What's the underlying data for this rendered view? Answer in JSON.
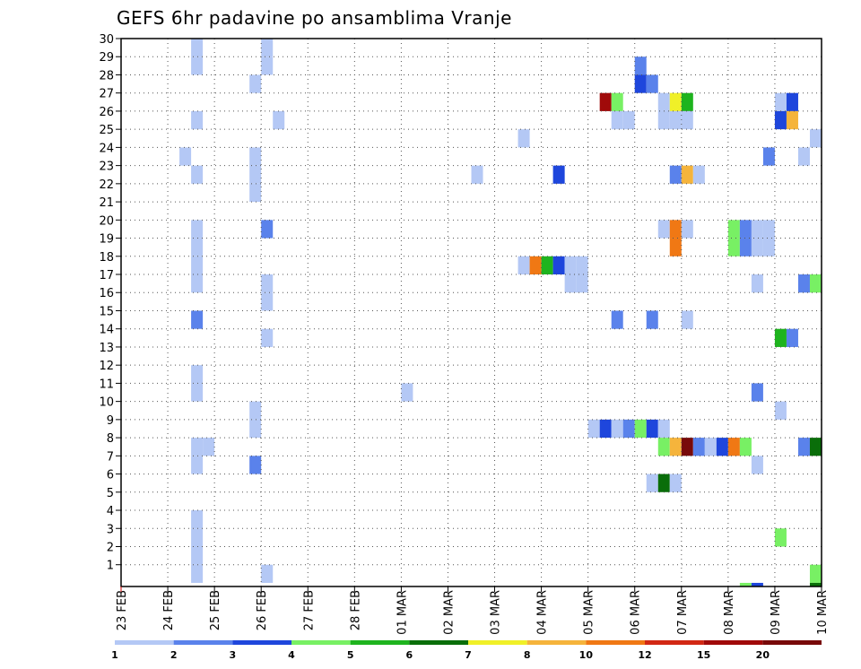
{
  "chart_data": {
    "type": "heatmap",
    "title": "GEFS 6hr padavine po ansamblima Vranje",
    "xlabel": "",
    "ylabel": "",
    "x_tick_labels": [
      "23 FEB",
      "24 FEB",
      "25 FEB",
      "26 FEB",
      "27 FEB",
      "28 FEB",
      "01 MAR",
      "02 MAR",
      "03 MAR",
      "04 MAR",
      "05 MAR",
      "06 MAR",
      "07 MAR",
      "08 MAR",
      "09 MAR",
      "10 MAR"
    ],
    "x_unit": "6-hour steps since 23 FEB 00Z",
    "xlim": [
      0,
      60
    ],
    "y_tick_labels": [
      "1",
      "2",
      "3",
      "4",
      "5",
      "6",
      "7",
      "8",
      "9",
      "10",
      "11",
      "12",
      "13",
      "14",
      "15",
      "16",
      "17",
      "18",
      "19",
      "20",
      "21",
      "22",
      "23",
      "24",
      "25",
      "26",
      "27",
      "28",
      "29",
      "30"
    ],
    "ylim": [
      0,
      30
    ],
    "grid": true,
    "colorbar": {
      "labels": [
        "1",
        "2",
        "3",
        "4",
        "5",
        "6",
        "7",
        "8",
        "10",
        "12",
        "15",
        "20"
      ],
      "colors": [
        "#b4c8f5",
        "#5a82eb",
        "#1e46dc",
        "#78f064",
        "#1eb41e",
        "#0a6e0a",
        "#f0f028",
        "#f5b43c",
        "#f07814",
        "#d22814",
        "#a00a0a",
        "#780a0a"
      ]
    },
    "cells": [
      {
        "x": 6,
        "y": 29,
        "c": 0
      },
      {
        "x": 6,
        "y": 28,
        "c": 0
      },
      {
        "x": 6,
        "y": 25,
        "c": 0
      },
      {
        "x": 6,
        "y": 22,
        "c": 0
      },
      {
        "x": 5,
        "y": 23,
        "c": 0
      },
      {
        "x": 6,
        "y": 19,
        "c": 0
      },
      {
        "x": 6,
        "y": 18,
        "c": 0
      },
      {
        "x": 6,
        "y": 17,
        "c": 0
      },
      {
        "x": 6,
        "y": 16,
        "c": 0
      },
      {
        "x": 6,
        "y": 14,
        "c": 1
      },
      {
        "x": 6,
        "y": 11,
        "c": 0
      },
      {
        "x": 6,
        "y": 10,
        "c": 0
      },
      {
        "x": 6,
        "y": 7,
        "c": 0
      },
      {
        "x": 7,
        "y": 7,
        "c": 0
      },
      {
        "x": 6,
        "y": 6,
        "c": 0
      },
      {
        "x": 6,
        "y": 3,
        "c": 0
      },
      {
        "x": 6,
        "y": 2,
        "c": 0
      },
      {
        "x": 6,
        "y": 1,
        "c": 0
      },
      {
        "x": 6,
        "y": 0,
        "c": 0
      },
      {
        "x": 12,
        "y": 29,
        "c": 0
      },
      {
        "x": 12,
        "y": 28,
        "c": 0
      },
      {
        "x": 11,
        "y": 27,
        "c": 0
      },
      {
        "x": 13,
        "y": 25,
        "c": 0
      },
      {
        "x": 11,
        "y": 23,
        "c": 0
      },
      {
        "x": 11,
        "y": 22,
        "c": 0
      },
      {
        "x": 11,
        "y": 21,
        "c": 0
      },
      {
        "x": 12,
        "y": 19,
        "c": 1
      },
      {
        "x": 12,
        "y": 16,
        "c": 0
      },
      {
        "x": 12,
        "y": 15,
        "c": 0
      },
      {
        "x": 12,
        "y": 13,
        "c": 0
      },
      {
        "x": 11,
        "y": 9,
        "c": 0
      },
      {
        "x": 11,
        "y": 8,
        "c": 0
      },
      {
        "x": 11,
        "y": 6,
        "c": 1
      },
      {
        "x": 12,
        "y": 0,
        "c": 0
      },
      {
        "x": 24,
        "y": 10,
        "c": 0
      },
      {
        "x": 30,
        "y": 22,
        "c": 0
      },
      {
        "x": 34,
        "y": 24,
        "c": 0
      },
      {
        "x": 37,
        "y": 22,
        "c": 2
      },
      {
        "x": 34,
        "y": 17,
        "c": 0
      },
      {
        "x": 35,
        "y": 17,
        "c": 8
      },
      {
        "x": 36,
        "y": 17,
        "c": 4
      },
      {
        "x": 37,
        "y": 17,
        "c": 2
      },
      {
        "x": 38,
        "y": 17,
        "c": 0
      },
      {
        "x": 39,
        "y": 17,
        "c": 0
      },
      {
        "x": 38,
        "y": 16,
        "c": 0
      },
      {
        "x": 39,
        "y": 16,
        "c": 0
      },
      {
        "x": 41,
        "y": 26,
        "c": 10
      },
      {
        "x": 42,
        "y": 26,
        "c": 3
      },
      {
        "x": 42,
        "y": 25,
        "c": 0
      },
      {
        "x": 43,
        "y": 25,
        "c": 0
      },
      {
        "x": 44,
        "y": 28,
        "c": 1
      },
      {
        "x": 44,
        "y": 27,
        "c": 2
      },
      {
        "x": 45,
        "y": 27,
        "c": 1
      },
      {
        "x": 46,
        "y": 26,
        "c": 0
      },
      {
        "x": 47,
        "y": 26,
        "c": 6
      },
      {
        "x": 48,
        "y": 26,
        "c": 4
      },
      {
        "x": 46,
        "y": 25,
        "c": 0
      },
      {
        "x": 47,
        "y": 25,
        "c": 0
      },
      {
        "x": 48,
        "y": 25,
        "c": 0
      },
      {
        "x": 47,
        "y": 22,
        "c": 1
      },
      {
        "x": 48,
        "y": 22,
        "c": 7
      },
      {
        "x": 49,
        "y": 22,
        "c": 0
      },
      {
        "x": 46,
        "y": 19,
        "c": 0
      },
      {
        "x": 47,
        "y": 19,
        "c": 8
      },
      {
        "x": 48,
        "y": 19,
        "c": 0
      },
      {
        "x": 47,
        "y": 18,
        "c": 8
      },
      {
        "x": 52,
        "y": 19,
        "c": 3
      },
      {
        "x": 53,
        "y": 19,
        "c": 1
      },
      {
        "x": 54,
        "y": 19,
        "c": 0
      },
      {
        "x": 55,
        "y": 19,
        "c": 0
      },
      {
        "x": 52,
        "y": 18,
        "c": 3
      },
      {
        "x": 53,
        "y": 18,
        "c": 1
      },
      {
        "x": 54,
        "y": 18,
        "c": 0
      },
      {
        "x": 55,
        "y": 18,
        "c": 0
      },
      {
        "x": 54,
        "y": 16,
        "c": 0
      },
      {
        "x": 58,
        "y": 16,
        "c": 1
      },
      {
        "x": 59,
        "y": 16,
        "c": 3
      },
      {
        "x": 42,
        "y": 14,
        "c": 1
      },
      {
        "x": 45,
        "y": 14,
        "c": 1
      },
      {
        "x": 48,
        "y": 14,
        "c": 0
      },
      {
        "x": 56,
        "y": 13,
        "c": 4
      },
      {
        "x": 57,
        "y": 13,
        "c": 1
      },
      {
        "x": 54,
        "y": 10,
        "c": 1
      },
      {
        "x": 56,
        "y": 9,
        "c": 0
      },
      {
        "x": 40,
        "y": 8,
        "c": 0
      },
      {
        "x": 41,
        "y": 8,
        "c": 2
      },
      {
        "x": 42,
        "y": 8,
        "c": 0
      },
      {
        "x": 43,
        "y": 8,
        "c": 1
      },
      {
        "x": 44,
        "y": 8,
        "c": 3
      },
      {
        "x": 45,
        "y": 8,
        "c": 2
      },
      {
        "x": 46,
        "y": 8,
        "c": 0
      },
      {
        "x": 46,
        "y": 7,
        "c": 3
      },
      {
        "x": 47,
        "y": 7,
        "c": 7
      },
      {
        "x": 48,
        "y": 7,
        "c": 11
      },
      {
        "x": 49,
        "y": 7,
        "c": 1
      },
      {
        "x": 50,
        "y": 7,
        "c": 0
      },
      {
        "x": 51,
        "y": 7,
        "c": 2
      },
      {
        "x": 52,
        "y": 7,
        "c": 8
      },
      {
        "x": 53,
        "y": 7,
        "c": 3
      },
      {
        "x": 58,
        "y": 7,
        "c": 1
      },
      {
        "x": 59,
        "y": 7,
        "c": 5
      },
      {
        "x": 54,
        "y": 6,
        "c": 0
      },
      {
        "x": 45,
        "y": 5,
        "c": 0
      },
      {
        "x": 46,
        "y": 5,
        "c": 5
      },
      {
        "x": 47,
        "y": 5,
        "c": 0
      },
      {
        "x": 56,
        "y": 2,
        "c": 3
      },
      {
        "x": 59,
        "y": 0,
        "c": 3
      },
      {
        "x": 53,
        "y": -1,
        "c": 3
      },
      {
        "x": 54,
        "y": -1,
        "c": 2
      },
      {
        "x": 59,
        "y": -1,
        "c": 5
      },
      {
        "x": 59,
        "y": 24,
        "c": 0
      },
      {
        "x": 58,
        "y": 23,
        "c": 0
      },
      {
        "x": 55,
        "y": 23,
        "c": 1
      },
      {
        "x": 56,
        "y": 26,
        "c": 0
      },
      {
        "x": 57,
        "y": 26,
        "c": 2
      },
      {
        "x": 56,
        "y": 25,
        "c": 2
      },
      {
        "x": 57,
        "y": 25,
        "c": 7
      }
    ]
  }
}
